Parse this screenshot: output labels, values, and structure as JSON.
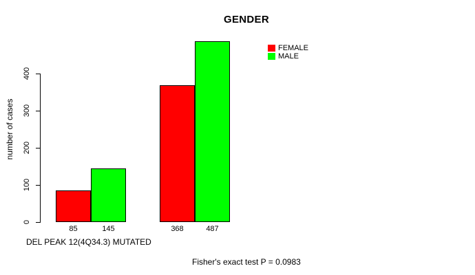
{
  "chart_data": {
    "type": "bar",
    "title": "GENDER",
    "xlabel": "",
    "ylabel": "number of cases",
    "ylim": [
      0,
      400
    ],
    "yticks": [
      0,
      100,
      200,
      300,
      400
    ],
    "categories": [
      "",
      ""
    ],
    "series": [
      {
        "name": "FEMALE",
        "color": "#ff0000",
        "values": [
          85,
          368
        ]
      },
      {
        "name": "MALE",
        "color": "#00ff00",
        "values": [
          145,
          487
        ]
      }
    ],
    "bar_value_labels": [
      [
        "85",
        "145"
      ],
      [
        "368",
        "487"
      ]
    ],
    "x_caption": "DEL PEAK 12(4Q34.3) MUTATED",
    "annotation": "Fisher's exact test P = 0.0983",
    "legend_position": "top-right",
    "grid": false,
    "background_color": "#ffffff",
    "bar_border_color": "#000000"
  }
}
